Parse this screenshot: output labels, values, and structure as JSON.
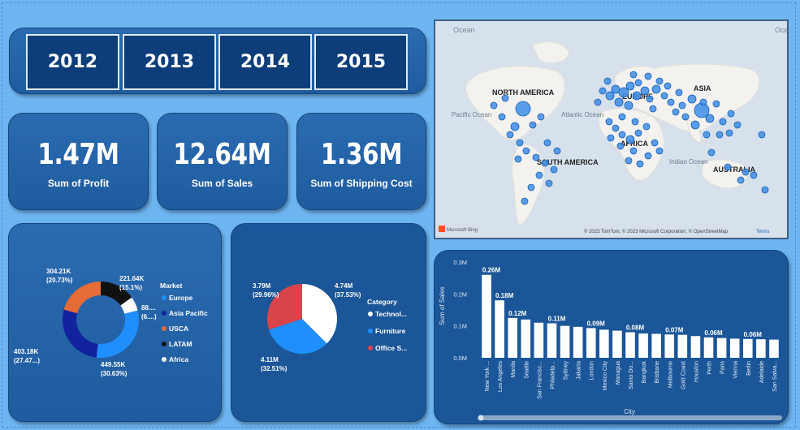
{
  "years": [
    "2012",
    "2013",
    "2014",
    "2015"
  ],
  "kpis": [
    {
      "value": "1.47M",
      "label": "Sum of Profit"
    },
    {
      "value": "12.64M",
      "label": "Sum of Sales"
    },
    {
      "value": "1.36M",
      "label": "Sum of Shipping Cost"
    }
  ],
  "map": {
    "labels": {
      "north_america": "NORTH AMERICA",
      "south_america": "SOUTH AMERICA",
      "europe": "EUROPE",
      "asia": "ASIA",
      "africa": "AFRICA",
      "australia": "AUSTRALIA",
      "atlantic": "Atlantic Ocean",
      "pacific": "Pacific Ocean",
      "indian": "Indian Ocean",
      "ocean_top": "Ocean",
      "ocean_top_right": "Oce"
    },
    "copyright": "© 2023 TomTom, © 2023 Microsoft Corporation, © OpenStreetMap",
    "terms": "Terms",
    "brand": "Microsoft Bing",
    "point_color": "#3d8de6"
  },
  "market": {
    "legend_title": "Market",
    "items": [
      {
        "name": "Europe",
        "color": "#1f8fff"
      },
      {
        "name": "Asia Pacific",
        "color": "#12239e"
      },
      {
        "name": "USCA",
        "color": "#e66c37"
      },
      {
        "name": "LATAM",
        "color": "#111111"
      },
      {
        "name": "Africa",
        "color": "#ffffff"
      }
    ],
    "labels": [
      {
        "value": "304.21K",
        "pct": "(20.73%)"
      },
      {
        "value": "221.64K",
        "pct": "(15.1%)"
      },
      {
        "value": "88....",
        "pct": "(6....)"
      },
      {
        "value": "449.55K",
        "pct": "(30.63%)"
      },
      {
        "value": "403.18K",
        "pct": "(27.47...)"
      }
    ]
  },
  "category": {
    "legend_title": "Category",
    "items": [
      {
        "name": "Technol...",
        "color": "#ffffff"
      },
      {
        "name": "Furniture",
        "color": "#1f8fff"
      },
      {
        "name": "Office S...",
        "color": "#d9434a"
      }
    ],
    "labels": [
      {
        "value": "3.79M",
        "pct": "(29.96%)"
      },
      {
        "value": "4.74M",
        "pct": "(37.53%)"
      },
      {
        "value": "4.11M",
        "pct": "(32.51%)"
      }
    ]
  },
  "chart_data": [
    {
      "type": "pie",
      "title": "",
      "legend": "Market",
      "categories": [
        "Europe",
        "Asia Pacific",
        "USCA",
        "LATAM",
        "Africa"
      ],
      "values": [
        449.55,
        403.18,
        304.21,
        221.64,
        88.0
      ],
      "unit": "K",
      "colors": [
        "#1f8fff",
        "#12239e",
        "#e66c37",
        "#111111",
        "#ffffff"
      ],
      "donut": true
    },
    {
      "type": "pie",
      "title": "",
      "legend": "Category",
      "categories": [
        "Technol...",
        "Furniture",
        "Office S..."
      ],
      "values": [
        4.74,
        4.11,
        3.79
      ],
      "unit": "M",
      "colors": [
        "#ffffff",
        "#1f8fff",
        "#d9434a"
      ]
    },
    {
      "type": "bar",
      "xlabel": "City",
      "ylabel": "Sum of Sales",
      "ylim": [
        0,
        0.3
      ],
      "yticks": [
        "0.0M",
        "0.1M",
        "0.2M",
        "0.3M"
      ],
      "categories": [
        "New York ...",
        "Los Angeles",
        "Manila",
        "Seattle",
        "San Francisc...",
        "Philadelp...",
        "Sydney",
        "Jakarta",
        "London",
        "Mexico City",
        "Managua",
        "Santo Do...",
        "Bangkok",
        "Brisbane",
        "Melbourne",
        "Gold Coast",
        "Houston",
        "Perth",
        "Paris",
        "Vienna",
        "Berlin",
        "Adelaide",
        "San Salva..."
      ],
      "values": [
        0.26,
        0.18,
        0.125,
        0.12,
        0.11,
        0.108,
        0.1,
        0.097,
        0.093,
        0.088,
        0.085,
        0.08,
        0.076,
        0.075,
        0.073,
        0.072,
        0.068,
        0.064,
        0.062,
        0.06,
        0.059,
        0.058,
        0.057
      ],
      "data_labels": [
        {
          "index": 0,
          "text": "0.26M"
        },
        {
          "index": 1,
          "text": "0.18M"
        },
        {
          "index": 2,
          "text": "0.12M"
        },
        {
          "index": 5,
          "text": "0.11M"
        },
        {
          "index": 8,
          "text": "0.09M"
        },
        {
          "index": 11,
          "text": "0.08M"
        },
        {
          "index": 14,
          "text": "0.07M"
        },
        {
          "index": 17,
          "text": "0.06M"
        },
        {
          "index": 20,
          "text": "0.06M"
        }
      ],
      "bar_color": "#ffffff",
      "grid": false
    }
  ]
}
